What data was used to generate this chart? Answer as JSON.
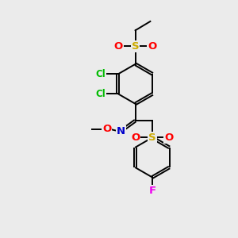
{
  "bg_color": "#ebebeb",
  "atom_colors": {
    "O": "#ff0000",
    "S": "#ccaa00",
    "N": "#0000cc",
    "Cl": "#00bb00",
    "F": "#ee00ee"
  },
  "bond_color": "#000000",
  "lw": 1.4,
  "dbo": 0.07,
  "fig_w": 3.0,
  "fig_h": 3.0,
  "dpi": 100
}
